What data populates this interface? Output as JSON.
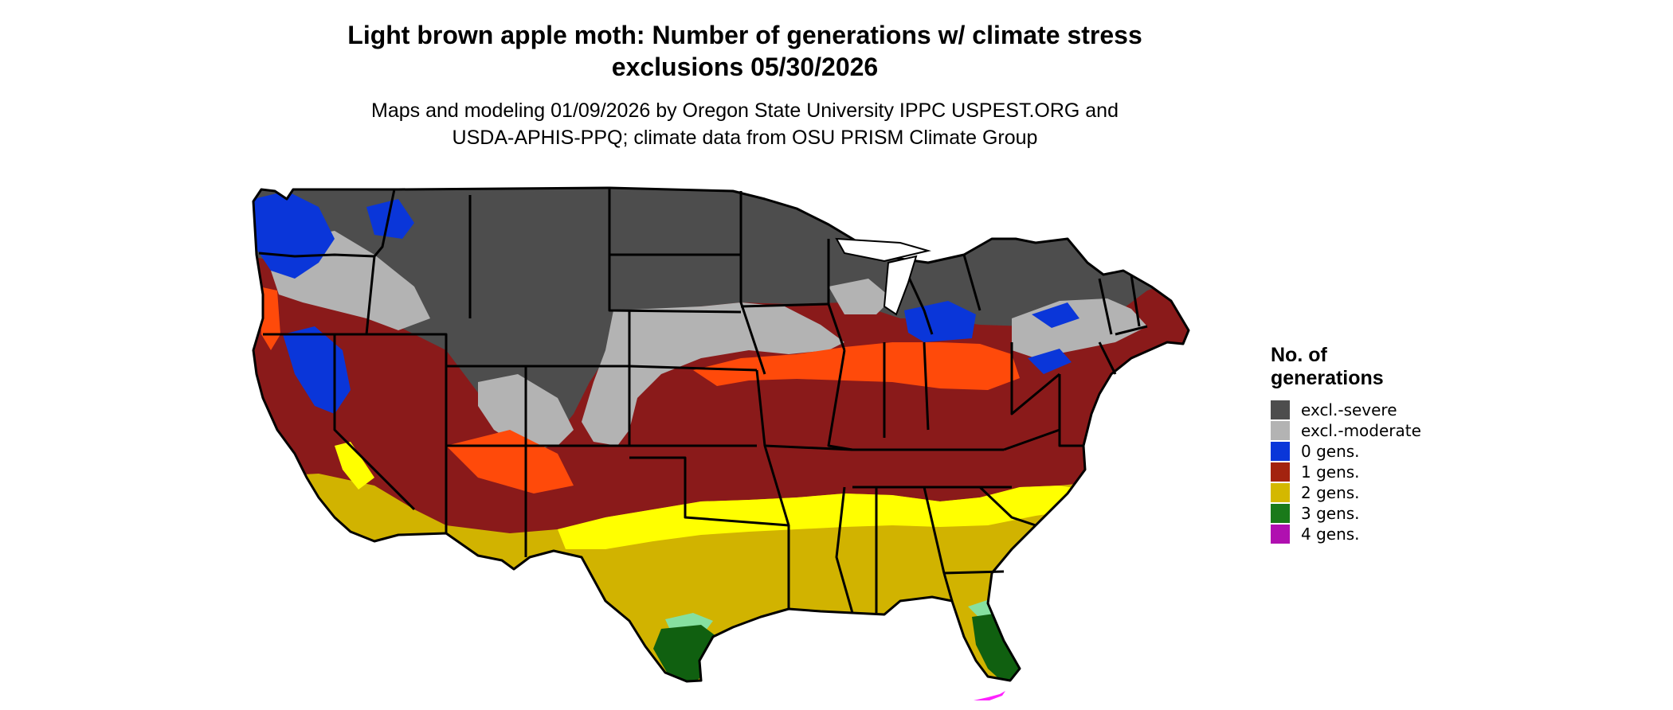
{
  "title": {
    "line1": "Light brown apple moth: Number of generations w/ climate stress",
    "line2": "exclusions 05/30/2026"
  },
  "subtitle": {
    "line1": "Maps and modeling 01/09/2026 by Oregon State University IPPC USPEST.ORG and",
    "line2": "USDA-APHIS-PPQ; climate data from OSU PRISM Climate Group"
  },
  "legend": {
    "title_line1": "No. of",
    "title_line2": "generations",
    "items": [
      {
        "label": "excl.-severe",
        "color": "#4d4d4d"
      },
      {
        "label": "excl.-moderate",
        "color": "#b3b3b3"
      },
      {
        "label": "0 gens.",
        "color": "#0a36d9"
      },
      {
        "label": "1 gens.",
        "color": "#a3230f"
      },
      {
        "label": "2 gens.",
        "color": "#d4b800"
      },
      {
        "label": "3 gens.",
        "color": "#1a7a1a"
      },
      {
        "label": "4 gens.",
        "color": "#b010b0"
      }
    ]
  },
  "map_colors": {
    "excl_severe": "#4d4d4d",
    "excl_moderate": "#b3b3b3",
    "zero_gens": "#0a36d9",
    "one_gens": "#8a1a1a",
    "one_gens_orange": "#ff4a0a",
    "two_gens": "#d1b300",
    "two_gens_bright": "#ffff00",
    "three_gens": "#106010",
    "three_gens_light": "#86e0a0",
    "four_gens": "#ff22ff"
  }
}
